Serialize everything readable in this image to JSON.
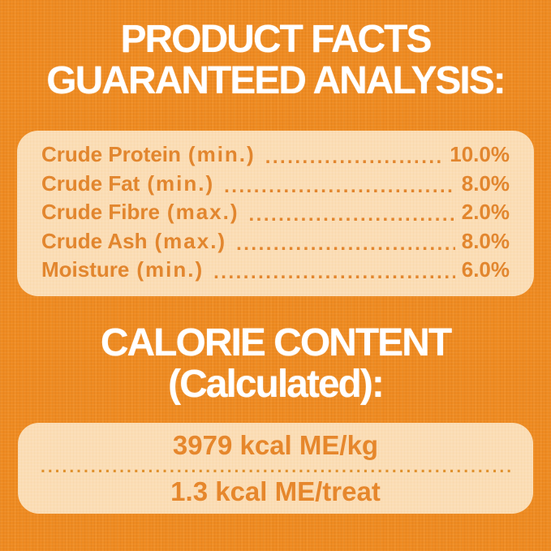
{
  "header": {
    "title_line1": "PRODUCT FACTS",
    "title_line2": "GUARANTEED ANALYSIS:"
  },
  "analysis": {
    "rows": [
      {
        "name": "Crude Protein",
        "qualifier": "(min.)",
        "value": "10.0%"
      },
      {
        "name": "Crude Fat",
        "qualifier": "(min.)",
        "value": "8.0%"
      },
      {
        "name": "Crude Fibre",
        "qualifier": "(max.)",
        "value": "2.0%"
      },
      {
        "name": "Crude Ash",
        "qualifier": "(max.)",
        "value": "8.0%"
      },
      {
        "name": "Moisture",
        "qualifier": "(min.)",
        "value": "6.0%"
      }
    ],
    "leader_dots": "............................................................"
  },
  "calorie": {
    "title_line1": "CALORIE CONTENT",
    "title_line2": "(Calculated):",
    "per_kg": "3979 kcal ME/kg",
    "per_treat": "1.3 kcal ME/treat",
    "divider_dots": ".........................................................................................."
  },
  "colors": {
    "background_orange": "#EE8A21",
    "panel_peach": "#FBDDB5",
    "text_orange": "#E2862E",
    "heading_white": "#FFFFFF"
  }
}
